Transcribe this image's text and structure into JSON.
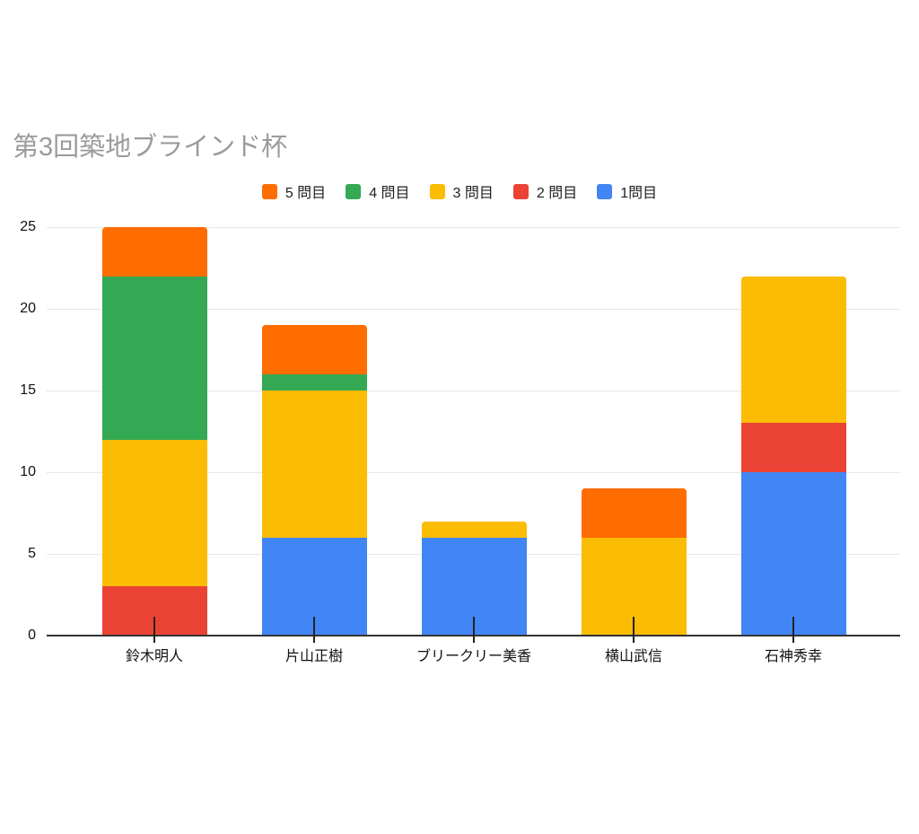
{
  "chart_data": {
    "type": "bar",
    "stacked": true,
    "title": "第3回築地ブラインド杯",
    "categories": [
      "鈴木明人",
      "片山正樹",
      "ブリークリー美香",
      "横山武信",
      "石神秀幸"
    ],
    "series": [
      {
        "name": "1問目",
        "color": "#4285F4",
        "values": [
          0,
          6,
          6,
          0,
          10
        ]
      },
      {
        "name": "2 問目",
        "color": "#EA4335",
        "values": [
          3,
          0,
          0,
          0,
          3
        ]
      },
      {
        "name": "3 問目",
        "color": "#FBBC04",
        "values": [
          9,
          9,
          1,
          6,
          9
        ]
      },
      {
        "name": "4 問目",
        "color": "#34A853",
        "values": [
          10,
          1,
          0,
          0,
          0
        ]
      },
      {
        "name": "5 問目",
        "color": "#FF6D01",
        "values": [
          3,
          3,
          0,
          3,
          0
        ]
      }
    ],
    "legend_order_labels": [
      "5 問目",
      "4 問目",
      "3 問目",
      "2 問目",
      "1問目"
    ],
    "legend_position": "top",
    "xlabel": "",
    "ylabel": "",
    "ylim": [
      0,
      25
    ],
    "yticks": [
      0,
      5,
      10,
      15,
      20,
      25
    ],
    "grid": true
  },
  "colors": {
    "background": "#FFFFFF",
    "title_text": "#9B9B9B",
    "axis_label_text": "#111111",
    "gridline": "#E6E6E6",
    "axis_line": "#333333"
  }
}
